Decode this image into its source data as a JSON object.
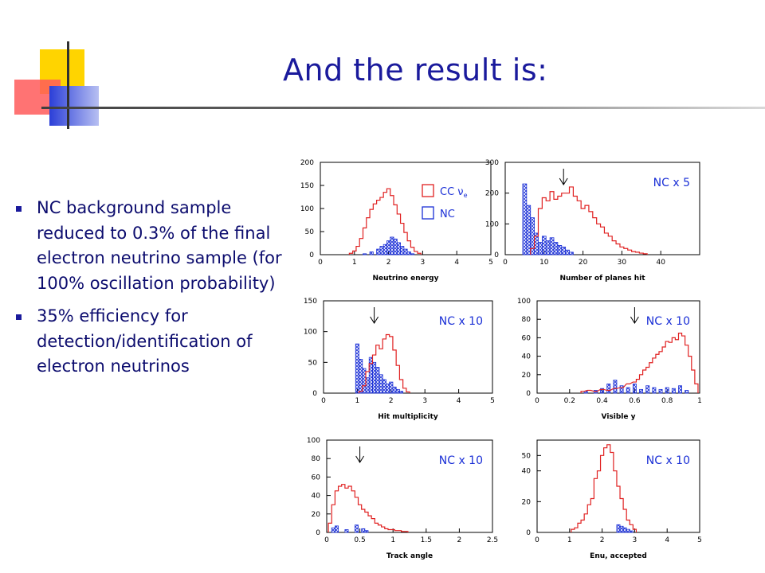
{
  "slide": {
    "title": "And the result is:",
    "bullets": [
      "NC background sample reduced to 0.3% of the final electron neutrino sample (for 100% oscillation probability)",
      "35% efficiency for detection/identification of electron neutrinos"
    ]
  },
  "legend": {
    "cc_label": "CC ν",
    "cc_subscript": "e",
    "nc_label": "NC"
  },
  "colors": {
    "title": "#1a1a9c",
    "bullet_text": "#0c0c6e",
    "cc_line": "#e02020",
    "nc_hatch": "#1a2fd6",
    "deco_yellow": "#ffd400",
    "deco_red": "#ff5252",
    "deco_blue": "#2b3fd8"
  },
  "chart_data": [
    {
      "type": "histogram",
      "xlabel": "Neutrino energy",
      "xlim": [
        0,
        5
      ],
      "ylim": [
        0,
        200
      ],
      "xticks": [
        "0",
        "1",
        "2",
        "3",
        "4",
        "5"
      ],
      "yticks": [
        "0",
        "50",
        "100",
        "150",
        "200"
      ],
      "bin_width": 0.1,
      "series": [
        {
          "name": "CC νe",
          "x": [
            0.9,
            1.0,
            1.1,
            1.2,
            1.3,
            1.4,
            1.5,
            1.6,
            1.7,
            1.8,
            1.9,
            2.0,
            2.1,
            2.2,
            2.3,
            2.4,
            2.5,
            2.6,
            2.7,
            2.8,
            2.9
          ],
          "values": [
            3,
            8,
            18,
            35,
            58,
            80,
            98,
            110,
            118,
            124,
            135,
            143,
            128,
            108,
            88,
            68,
            48,
            30,
            16,
            7,
            3
          ]
        },
        {
          "name": "NC",
          "x": [
            1.3,
            1.5,
            1.7,
            1.8,
            1.9,
            2.0,
            2.1,
            2.2,
            2.3,
            2.4,
            2.5,
            2.6,
            2.7
          ],
          "values": [
            2,
            6,
            12,
            18,
            22,
            30,
            38,
            34,
            26,
            18,
            12,
            6,
            2
          ]
        }
      ]
    },
    {
      "type": "histogram",
      "xlabel": "Number of planes hit",
      "xlim": [
        0,
        50
      ],
      "ylim": [
        0,
        300
      ],
      "xticks": [
        "0",
        "10",
        "20",
        "30",
        "40"
      ],
      "yticks": [
        "0",
        "100",
        "200",
        "300"
      ],
      "annotation": "NC x 5",
      "arrow_x": 15,
      "bin_width": 1,
      "series": [
        {
          "name": "CC νe",
          "x": [
            7,
            8,
            9,
            10,
            11,
            12,
            13,
            14,
            15,
            16,
            17,
            18,
            19,
            20,
            21,
            22,
            23,
            24,
            25,
            26,
            27,
            28,
            29,
            30,
            31,
            32,
            33,
            34,
            35,
            36
          ],
          "values": [
            20,
            60,
            150,
            185,
            175,
            205,
            180,
            190,
            200,
            200,
            220,
            190,
            175,
            150,
            160,
            140,
            120,
            100,
            90,
            70,
            60,
            45,
            35,
            25,
            20,
            15,
            10,
            8,
            5,
            3
          ]
        },
        {
          "name": "NC",
          "x": [
            5,
            6,
            7,
            8,
            9,
            10,
            11,
            12,
            13,
            14,
            15,
            16,
            17
          ],
          "values": [
            230,
            160,
            120,
            70,
            40,
            60,
            45,
            55,
            40,
            30,
            25,
            15,
            8
          ]
        }
      ]
    },
    {
      "type": "histogram",
      "xlabel": "Hit multiplicity",
      "xlim": [
        0,
        5
      ],
      "ylim": [
        0,
        150
      ],
      "xticks": [
        "0",
        "1",
        "2",
        "3",
        "4",
        "5"
      ],
      "yticks": [
        "0",
        "50",
        "100",
        "150"
      ],
      "annotation": "NC x 10",
      "arrow_x": 1.5,
      "bin_width": 0.1,
      "series": [
        {
          "name": "CC νe",
          "x": [
            1.1,
            1.2,
            1.3,
            1.4,
            1.5,
            1.6,
            1.7,
            1.8,
            1.9,
            2.0,
            2.1,
            2.2,
            2.3,
            2.4,
            2.5
          ],
          "values": [
            3,
            12,
            35,
            48,
            62,
            78,
            72,
            88,
            95,
            92,
            70,
            45,
            22,
            8,
            2
          ]
        },
        {
          "name": "NC",
          "x": [
            1.0,
            1.1,
            1.2,
            1.3,
            1.4,
            1.5,
            1.6,
            1.7,
            1.8,
            1.9,
            2.0,
            2.1,
            2.2,
            2.3
          ],
          "values": [
            80,
            55,
            40,
            25,
            58,
            50,
            42,
            30,
            22,
            15,
            18,
            10,
            6,
            3
          ]
        }
      ]
    },
    {
      "type": "histogram",
      "xlabel": "Visible y",
      "xlim": [
        0,
        1
      ],
      "ylim": [
        0,
        100
      ],
      "xticks": [
        "0",
        "0.2",
        "0.4",
        "0.6",
        "0.8",
        "1"
      ],
      "yticks": [
        "0",
        "20",
        "40",
        "60",
        "80",
        "100"
      ],
      "annotation": "NC x 10",
      "arrow_x": 0.6,
      "bin_width": 0.02,
      "series": [
        {
          "name": "CC νe",
          "x": [
            0.28,
            0.32,
            0.36,
            0.4,
            0.44,
            0.48,
            0.52,
            0.56,
            0.6,
            0.62,
            0.64,
            0.66,
            0.68,
            0.7,
            0.72,
            0.74,
            0.76,
            0.78,
            0.8,
            0.82,
            0.84,
            0.86,
            0.88,
            0.9,
            0.92,
            0.94,
            0.96,
            0.98
          ],
          "values": [
            2,
            3,
            2,
            4,
            3,
            5,
            6,
            10,
            12,
            15,
            20,
            25,
            28,
            33,
            38,
            42,
            45,
            50,
            56,
            55,
            60,
            58,
            65,
            62,
            52,
            40,
            25,
            10
          ]
        },
        {
          "name": "NC",
          "x": [
            0.3,
            0.36,
            0.4,
            0.44,
            0.48,
            0.52,
            0.56,
            0.6,
            0.64,
            0.68,
            0.72,
            0.76,
            0.8,
            0.84,
            0.88,
            0.92
          ],
          "values": [
            2,
            3,
            5,
            10,
            14,
            8,
            6,
            10,
            4,
            8,
            6,
            4,
            6,
            5,
            8,
            3
          ]
        }
      ]
    },
    {
      "type": "histogram",
      "xlabel": "Track angle",
      "xlim": [
        0,
        2.5
      ],
      "ylim": [
        0,
        100
      ],
      "xticks": [
        "0",
        "0.5",
        "1",
        "1.5",
        "2",
        "2.5"
      ],
      "yticks": [
        "0",
        "20",
        "40",
        "60",
        "80",
        "100"
      ],
      "annotation": "NC x 10",
      "arrow_x": 0.5,
      "bin_width": 0.05,
      "series": [
        {
          "name": "CC νe",
          "x": [
            0.05,
            0.1,
            0.15,
            0.2,
            0.25,
            0.3,
            0.35,
            0.4,
            0.45,
            0.5,
            0.55,
            0.6,
            0.65,
            0.7,
            0.75,
            0.8,
            0.85,
            0.9,
            0.95,
            1.0,
            1.05,
            1.1,
            1.15,
            1.2
          ],
          "values": [
            10,
            30,
            45,
            50,
            52,
            48,
            50,
            45,
            38,
            30,
            25,
            22,
            18,
            15,
            10,
            8,
            6,
            4,
            3,
            3,
            2,
            2,
            1,
            1
          ]
        },
        {
          "name": "NC",
          "x": [
            0.1,
            0.15,
            0.3,
            0.45,
            0.55,
            0.6
          ],
          "values": [
            5,
            7,
            3,
            8,
            4,
            2
          ]
        }
      ]
    },
    {
      "type": "histogram",
      "xlabel": "Enu, accepted",
      "xlim": [
        0,
        5
      ],
      "ylim": [
        0,
        60
      ],
      "xticks": [
        "0",
        "1",
        "2",
        "3",
        "4",
        "5"
      ],
      "yticks": [
        "0",
        "20",
        "40",
        "50"
      ],
      "annotation": "NC x 10",
      "bin_width": 0.1,
      "series": [
        {
          "name": "CC νe",
          "x": [
            1.1,
            1.2,
            1.3,
            1.4,
            1.5,
            1.6,
            1.7,
            1.8,
            1.9,
            2.0,
            2.1,
            2.2,
            2.3,
            2.4,
            2.5,
            2.6,
            2.7,
            2.8,
            2.9,
            3.0
          ],
          "values": [
            2,
            3,
            6,
            8,
            12,
            18,
            22,
            35,
            40,
            50,
            55,
            57,
            52,
            40,
            30,
            22,
            15,
            8,
            5,
            2
          ]
        },
        {
          "name": "NC",
          "x": [
            2.5,
            2.6,
            2.7,
            2.8,
            2.9
          ],
          "values": [
            5,
            4,
            3,
            2,
            1
          ]
        }
      ]
    }
  ]
}
